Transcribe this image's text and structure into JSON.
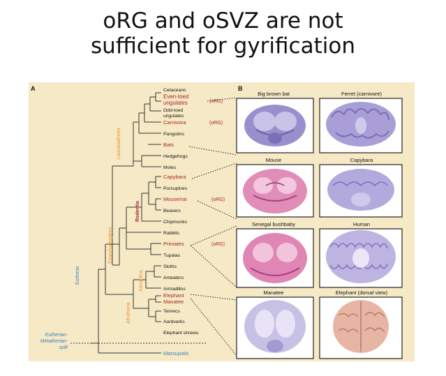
{
  "slide_title": [
    "oRG and oSVZ are not",
    "sufficient for gyrification"
  ],
  "panel_labels": {
    "a": "A",
    "b": "B"
  },
  "taxa": {
    "cetaceans": "Cetaceans",
    "even_toed": [
      "Even-toed",
      "ungulates"
    ],
    "odd_toed": [
      "Odd-toed",
      "ungulates"
    ],
    "carnivora": "Carnivora",
    "pangolins": "Pangolins",
    "bats": "Bats",
    "hedgehogs": "Hedgehogs",
    "moles": "Moles",
    "capybara": "Capybara",
    "porcupines": "Porcupines",
    "mouse_rat": "Mouse/rat",
    "beavers": "Beavers",
    "chipmunks": "Chipmunks",
    "rabbits": "Rabbits",
    "primates": "Primates",
    "tupaias": "Tupaias",
    "sloths": "Sloths",
    "anteaters": "Anteaters",
    "armadillos": "Armadillos",
    "elephant": "Elephant",
    "manatee": "Manatee",
    "tenrecs": "Tenrecs",
    "aardvarks": "Aardvarks",
    "elephant_shrews": "Elephant shrews",
    "marsupials": "Marsupials"
  },
  "org_tag": "(oRG)",
  "clades": {
    "laurasiatheria": "Laurasiatheria",
    "euarchontoglires": "Euarchontoglires",
    "rodentia": "Rodentia",
    "xenarthra": "Xenarthra",
    "afrotheria": "Afrotheria",
    "eutheria": "Eutheria",
    "split": [
      "Eutherian-",
      "Metatherian-",
      "split"
    ]
  },
  "brains": {
    "big_brown_bat": "Big brown bat",
    "ferret": "Ferret (carnivore)",
    "mouse": "Mouse",
    "capybara": "Capybara",
    "bushbaby": "Senegal bushbaby",
    "human": "Human",
    "manatee": "Manatee",
    "elephant": "Elephant (dorsal view)"
  },
  "colors": {
    "background": "#f6e9c6",
    "highlight_red": "#a5262b",
    "clade_orange": "#e8922a",
    "clade_blue": "#3f7fb0",
    "tissue_purple": "#8c82c2",
    "tissue_pink": "#d46fa6"
  }
}
